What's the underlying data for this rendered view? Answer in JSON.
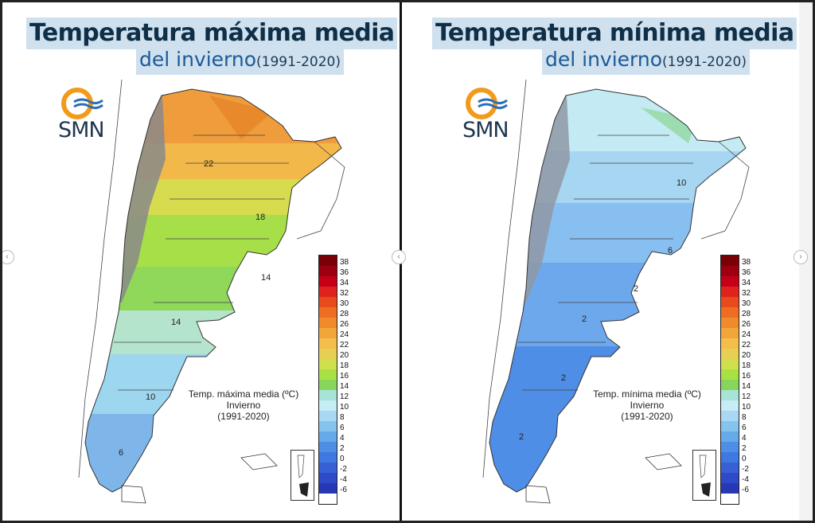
{
  "panels": [
    {
      "title_line1": "Temperatura máxima media",
      "title_line2": "del invierno",
      "title_years": "(1991-2020)",
      "logo_text": "SMN",
      "caption_line1": "Temp. máxima media (ºC)",
      "caption_line2": "Invierno",
      "caption_line3": "(1991-2020)",
      "contour_labels": [
        "22",
        "18",
        "14",
        "14",
        "10",
        "6"
      ]
    },
    {
      "title_line1": "Temperatura mínima media",
      "title_line2": "del invierno",
      "title_years": "(1991-2020)",
      "logo_text": "SMN",
      "caption_line1": "Temp. mínima media (ºC)",
      "caption_line2": "Invierno",
      "caption_line3": "(1991-2020)",
      "contour_labels": [
        "10",
        "6",
        "2",
        "2",
        "2",
        "2"
      ]
    }
  ],
  "legend": {
    "ticks": [
      "38",
      "36",
      "34",
      "32",
      "30",
      "28",
      "26",
      "24",
      "22",
      "20",
      "18",
      "16",
      "14",
      "12",
      "10",
      "8",
      "6",
      "4",
      "2",
      "0",
      "-2",
      "-4",
      "-6"
    ],
    "colors": [
      "#7a0008",
      "#9c0010",
      "#c40018",
      "#e0221c",
      "#e84a1c",
      "#ee6d22",
      "#f08a2a",
      "#f2a63a",
      "#f4be4a",
      "#e6cf52",
      "#cfe04c",
      "#a9e044",
      "#86d65c",
      "#a8e3d7",
      "#c6ecf6",
      "#a9d8f4",
      "#86c4f0",
      "#67aaea",
      "#4e8fe6",
      "#3e78e0",
      "#3760d6",
      "#2f4ac8",
      "#2638b4"
    ]
  },
  "icons": {
    "logo": "smn-sun-waves-logo",
    "carousel_prev": "chevron-left-icon",
    "carousel_next": "chevron-right-icon"
  }
}
